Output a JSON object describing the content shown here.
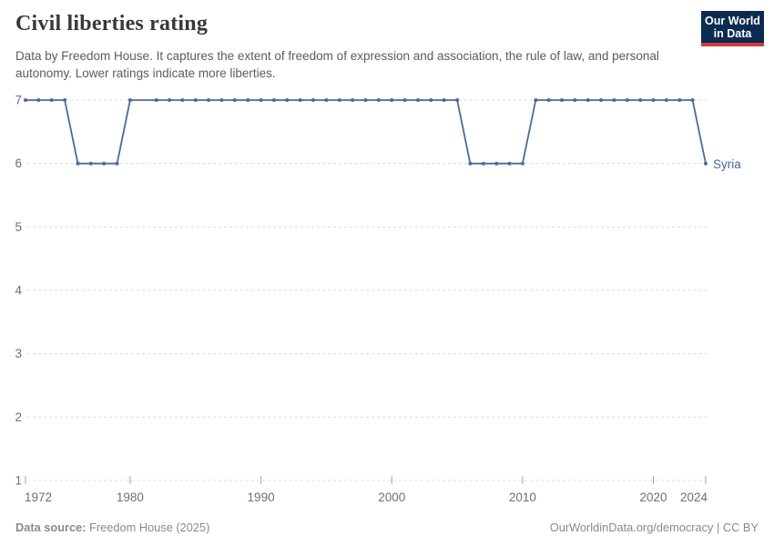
{
  "header": {
    "title": "Civil liberties rating",
    "subtitle_lines": [
      "Data by Freedom House. It captures the extent of freedom of expression and association, the rule of law, and",
      "personal autonomy. Lower ratings indicate more liberties."
    ],
    "logo": {
      "line1": "Our World",
      "line2": "in Data"
    }
  },
  "footer": {
    "source_label": "Data source:",
    "source_value": " Freedom House (2025)",
    "right_text": "OurWorldinData.org/democracy | CC BY"
  },
  "colors": {
    "line": "#4c6a9c",
    "marker": "#4c6a9c",
    "entity_label": "#44659b",
    "grid": "#dcdcdc",
    "axis_text": "#6f6f6f",
    "tick_mark": "#a3a3a3",
    "logo_bg": "#0c2b51",
    "logo_red": "#d23a3d"
  },
  "chart_data": {
    "type": "line",
    "title": "Civil liberties rating",
    "xlabel": "",
    "ylabel": "",
    "xlim": [
      1972,
      2024
    ],
    "ylim": [
      1,
      7
    ],
    "grid": "horizontal-dashed",
    "legend_position": "end-of-line",
    "x_ticks": [
      1972,
      1980,
      1990,
      2000,
      2010,
      2020,
      2024
    ],
    "y_ticks": [
      1,
      2,
      3,
      4,
      5,
      6,
      7
    ],
    "missing_years": [
      1981
    ],
    "series": [
      {
        "name": "Syria",
        "points": [
          [
            1972,
            7
          ],
          [
            1973,
            7
          ],
          [
            1974,
            7
          ],
          [
            1975,
            7
          ],
          [
            1976,
            6
          ],
          [
            1977,
            6
          ],
          [
            1978,
            6
          ],
          [
            1979,
            6
          ],
          [
            1980,
            7
          ],
          [
            1981,
            null
          ],
          [
            1982,
            7
          ],
          [
            1983,
            7
          ],
          [
            1984,
            7
          ],
          [
            1985,
            7
          ],
          [
            1986,
            7
          ],
          [
            1987,
            7
          ],
          [
            1988,
            7
          ],
          [
            1989,
            7
          ],
          [
            1990,
            7
          ],
          [
            1991,
            7
          ],
          [
            1992,
            7
          ],
          [
            1993,
            7
          ],
          [
            1994,
            7
          ],
          [
            1995,
            7
          ],
          [
            1996,
            7
          ],
          [
            1997,
            7
          ],
          [
            1998,
            7
          ],
          [
            1999,
            7
          ],
          [
            2000,
            7
          ],
          [
            2001,
            7
          ],
          [
            2002,
            7
          ],
          [
            2003,
            7
          ],
          [
            2004,
            7
          ],
          [
            2005,
            7
          ],
          [
            2006,
            6
          ],
          [
            2007,
            6
          ],
          [
            2008,
            6
          ],
          [
            2009,
            6
          ],
          [
            2010,
            6
          ],
          [
            2011,
            7
          ],
          [
            2012,
            7
          ],
          [
            2013,
            7
          ],
          [
            2014,
            7
          ],
          [
            2015,
            7
          ],
          [
            2016,
            7
          ],
          [
            2017,
            7
          ],
          [
            2018,
            7
          ],
          [
            2019,
            7
          ],
          [
            2020,
            7
          ],
          [
            2021,
            7
          ],
          [
            2022,
            7
          ],
          [
            2023,
            7
          ],
          [
            2024,
            6
          ]
        ]
      }
    ]
  }
}
